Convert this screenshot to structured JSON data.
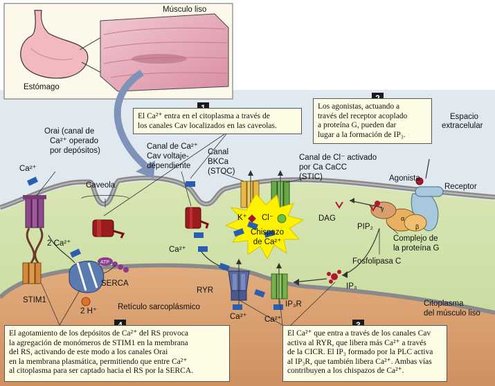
{
  "labels": {
    "smooth_muscle": "Músculo liso",
    "stomach": "Estómago",
    "extracellular_space": [
      "Espacio",
      "extracelular"
    ],
    "orai": [
      "Orai (canal de",
      "Ca²⁺ operado",
      "por depósitos)"
    ],
    "ca_orai": "Ca²⁺",
    "caveola": "Caveola",
    "cav_channel": [
      "Canal de Ca²⁺",
      "Cav voltaje-",
      "dependiente"
    ],
    "bk_channel": [
      "Canal",
      "BKCa",
      "(STOC)"
    ],
    "cl_channel": [
      "Canal de Cl⁻ activado",
      "por Ca CaCC",
      "(STIC)"
    ],
    "k_ion": "K⁺",
    "cl_ion": "Cl⁻",
    "spark": [
      "Chispazo",
      "de Ca²⁺"
    ],
    "dag": "DAG",
    "pip2": "PIP₂",
    "agonist": "Agonista",
    "receptor": "Receptor",
    "g_protein_complex": [
      "Complejo de",
      "la proteína G"
    ],
    "phospholipase_c": "Fosfolipasa C",
    "ip3": "IP₃",
    "ip3r": "IP₃R",
    "two_ca": "2 Ca²⁺",
    "atp": "ATP",
    "serca": "SERCA",
    "two_h": "2 H⁺",
    "stim1": "STIM1",
    "ryr": "RYR",
    "ca_cav": "Ca²⁺",
    "ca_ryr": "Ca²⁺",
    "ca_ip3r": "Ca²⁺",
    "sarcoplasmic_reticulum": "Retículo sarcoplásmico",
    "cytoplasm": [
      "Citoplasma",
      "del músculo liso"
    ],
    "alpha": "α",
    "beta": "β",
    "gamma": "γ"
  },
  "callouts": [
    {
      "number": "1",
      "lines": [
        "El Ca²⁺ entra en el citoplasma a través de",
        "los canales Cav localizados en las caveolas."
      ]
    },
    {
      "number": "2",
      "lines": [
        "Los agonistas, actuando a",
        "través del receptor acoplado",
        "a proteína G, pueden dar",
        "lugar a la formación de IP₃."
      ]
    },
    {
      "number": "3",
      "lines": [
        "El Ca²⁺ que entra a través de los canales Cav",
        "activa al RYR, que libera más Ca²⁺ a través",
        "de la CICR. El IP₃ formado por la PLC activa",
        "al IP₃R, que también libera Ca²⁺. Ambas vías",
        "contribuyen a los chispazos de Ca²⁺."
      ]
    },
    {
      "number": "4",
      "lines": [
        "El agotamiento de los depósitos de Ca²⁺ del RS provoca",
        "la agregación de monómeros de STIM1 en la membrana",
        "del RS, activando de este modo a los canales Orai",
        "en la membrana plasmática, permitiendo que entre Ca²⁺",
        "al citoplasma para ser captado hacia el RS por la SERCA."
      ]
    }
  ],
  "colors": {
    "cytoplasm": "#cfe0a8",
    "extracellular": "#dde8ee",
    "membrane": "#8a8a8a",
    "reticulum": "#d9a070",
    "calcium": "#2a5fb0",
    "spark": "#fff200",
    "orai": "#8e4a8a",
    "cav": "#9a1c1c",
    "ryr": "#5a6aa0",
    "ip3r": "#78b050",
    "note_bg": "#fffce6"
  }
}
